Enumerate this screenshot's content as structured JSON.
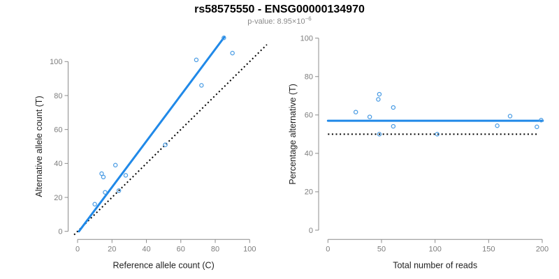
{
  "header": {
    "title": "rs58575550 - ENSG00000134970",
    "pvalue_prefix": "p-value: 8.95×10",
    "pvalue_exponent": "−6"
  },
  "colors": {
    "axis": "#8c8c8c",
    "tick_label": "#7d7d7d",
    "axis_title": "#1f1f1f",
    "fit_blue": "#2089E8",
    "point_blue": "#4A9CE4",
    "identity_black": "#000000"
  },
  "chart_data": [
    {
      "name": "allele-count-scatter",
      "type": "scatter",
      "xlabel": "Reference allele count (C)",
      "ylabel": "Alternative allele count (T)",
      "xticks": [
        0,
        20,
        40,
        60,
        80,
        100
      ],
      "yticks": [
        0,
        20,
        40,
        60,
        80,
        100
      ],
      "xlim": [
        0,
        100
      ],
      "ylim": [
        0,
        115
      ],
      "grid": false,
      "points": [
        [
          10,
          16
        ],
        [
          14,
          34
        ],
        [
          15,
          32
        ],
        [
          16,
          23
        ],
        [
          22,
          39
        ],
        [
          24,
          24
        ],
        [
          28,
          33
        ],
        [
          51,
          51
        ],
        [
          69,
          101
        ],
        [
          72,
          86
        ],
        [
          85,
          114
        ],
        [
          90,
          105
        ]
      ],
      "lines": [
        {
          "name": "identity-line",
          "style": "dotted",
          "color_key": "identity_black",
          "width": 2,
          "from": [
            -2,
            -2
          ],
          "to": [
            110,
            110
          ]
        },
        {
          "name": "fit-line",
          "style": "solid",
          "color_key": "fit_blue",
          "width": 3,
          "from": [
            0.8,
            0
          ],
          "to": [
            85.4,
            114.6
          ]
        }
      ]
    },
    {
      "name": "percentage-scatter",
      "type": "scatter",
      "xlabel": "Total number of reads",
      "ylabel": "Percentage alternative (T)",
      "xticks": [
        0,
        50,
        100,
        150,
        200
      ],
      "yticks": [
        0,
        20,
        40,
        60,
        80,
        100
      ],
      "xlim": [
        0,
        200
      ],
      "ylim": [
        0,
        100
      ],
      "grid": false,
      "points": [
        [
          26,
          61.5
        ],
        [
          48,
          70.8
        ],
        [
          47,
          68.1
        ],
        [
          39,
          59.0
        ],
        [
          61,
          63.9
        ],
        [
          48,
          50.0
        ],
        [
          61,
          54.1
        ],
        [
          102,
          50.0
        ],
        [
          170,
          59.4
        ],
        [
          158,
          54.4
        ],
        [
          199,
          57.3
        ],
        [
          195,
          53.8
        ]
      ],
      "lines": [
        {
          "name": "null-line",
          "style": "dotted",
          "color_key": "identity_black",
          "width": 2,
          "from": [
            0,
            50
          ],
          "to": [
            196,
            50
          ]
        },
        {
          "name": "mean-line",
          "style": "solid",
          "color_key": "fit_blue",
          "width": 3,
          "from": [
            0,
            57
          ],
          "to": [
            200.5,
            57
          ]
        }
      ]
    }
  ]
}
